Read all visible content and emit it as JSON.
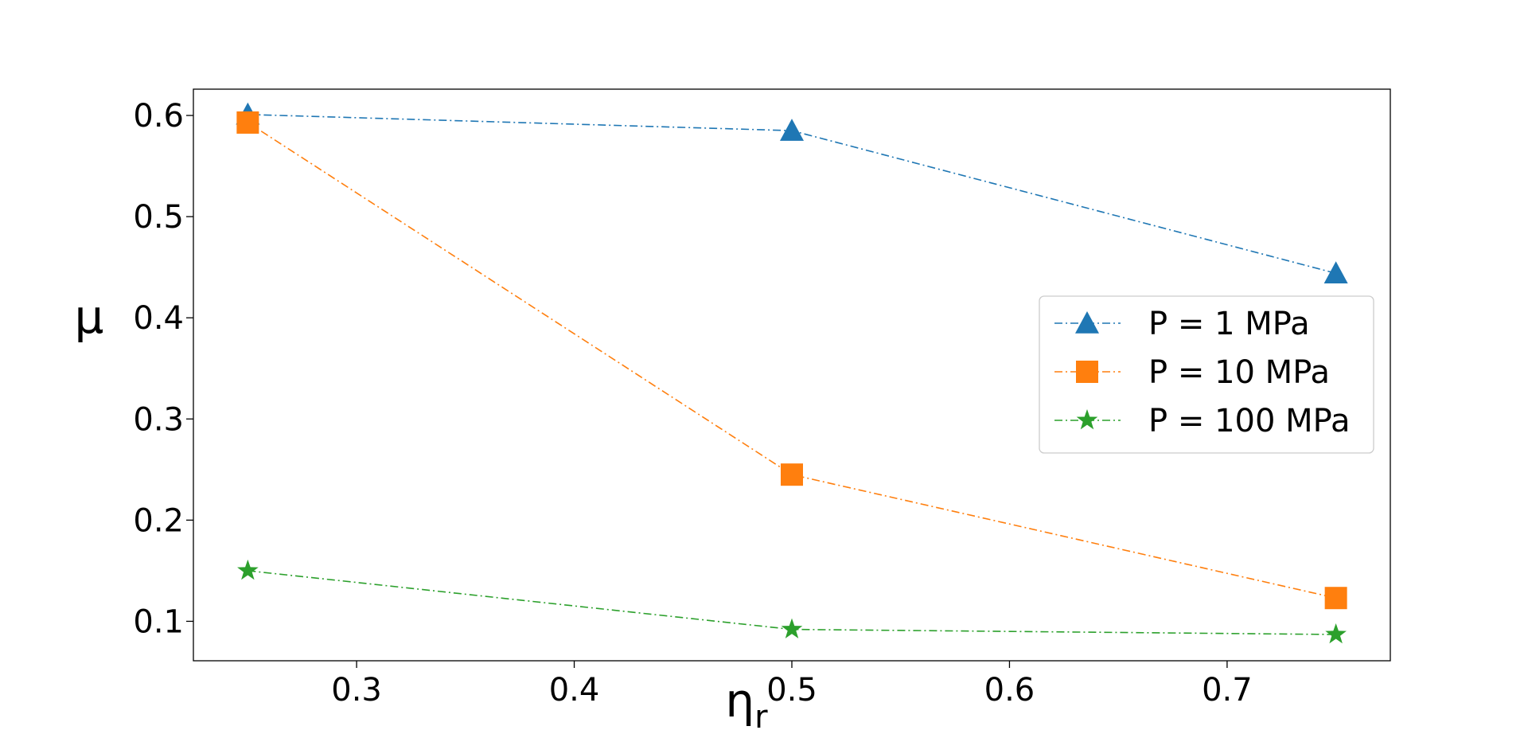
{
  "chart_data": {
    "type": "line",
    "title": "",
    "xlabel": "η",
    "xlabel_subscript": "r",
    "ylabel": "μ",
    "xlim": [
      0.225,
      0.775
    ],
    "ylim": [
      0.061,
      0.626
    ],
    "x_ticks": [
      0.3,
      0.4,
      0.5,
      0.6,
      0.7
    ],
    "x_tick_labels": [
      "0.3",
      "0.4",
      "0.5",
      "0.6",
      "0.7"
    ],
    "y_ticks": [
      0.1,
      0.2,
      0.3,
      0.4,
      0.5,
      0.6
    ],
    "y_tick_labels": [
      "0.1",
      "0.2",
      "0.3",
      "0.4",
      "0.5",
      "0.6"
    ],
    "grid": false,
    "legend_position": "center-right",
    "x": [
      0.25,
      0.5,
      0.75
    ],
    "series": [
      {
        "name": "P = 1 MPa",
        "values": [
          0.601,
          0.585,
          0.444
        ],
        "color": "#1f77b4",
        "marker": "triangle"
      },
      {
        "name": "P = 10 MPa",
        "values": [
          0.593,
          0.245,
          0.123
        ],
        "color": "#ff7f0e",
        "marker": "square"
      },
      {
        "name": "P = 100 MPa",
        "values": [
          0.15,
          0.092,
          0.087
        ],
        "color": "#2ca02c",
        "marker": "star"
      }
    ]
  }
}
